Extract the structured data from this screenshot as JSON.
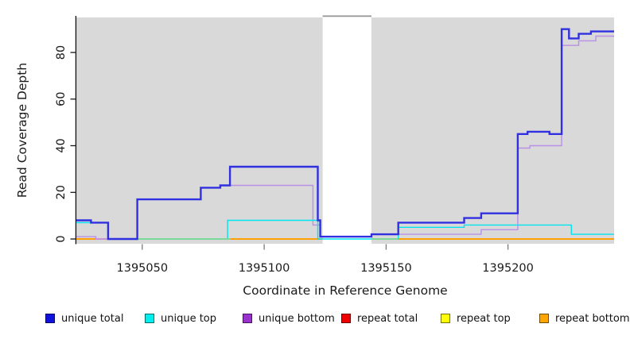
{
  "chart_data": {
    "type": "line",
    "subtype": "step",
    "title": "",
    "xlabel": "Coordinate in Reference Genome",
    "ylabel": "Read Coverage Depth",
    "x_ticks": [
      1395050,
      1395100,
      1395150,
      1395200
    ],
    "y_ticks": [
      0,
      20,
      40,
      60,
      80
    ],
    "x_domain": [
      1395023,
      1395243.5
    ],
    "y_domain": [
      0,
      95
    ],
    "grid": "off",
    "panel_bg": "#D9D9D9",
    "masked_region": {
      "x1": 1395124,
      "x2": 1395144,
      "fill": "#FFFFFF",
      "top_edge_color": "#999999"
    },
    "legend_position": "bottom",
    "series": [
      {
        "name": "unique-total",
        "label": "unique total",
        "color": "#3030E0",
        "swatch": "#1111DD",
        "width": 2.4,
        "z": 60,
        "points": [
          [
            1395023,
            8
          ],
          [
            1395029,
            7
          ],
          [
            1395036,
            0
          ],
          [
            1395048,
            17
          ],
          [
            1395074,
            22
          ],
          [
            1395082,
            23
          ],
          [
            1395086,
            31
          ],
          [
            1395122,
            8
          ],
          [
            1395123,
            1
          ],
          [
            1395144,
            2
          ],
          [
            1395155,
            7
          ],
          [
            1395182,
            9
          ],
          [
            1395189,
            11
          ],
          [
            1395204,
            45
          ],
          [
            1395208,
            46
          ],
          [
            1395217,
            45
          ],
          [
            1395222,
            90
          ],
          [
            1395225,
            86
          ],
          [
            1395229,
            88
          ],
          [
            1395234,
            89
          ],
          [
            1395243.5,
            89
          ]
        ]
      },
      {
        "name": "unique-top",
        "label": "unique top",
        "color": "#00E4EE",
        "swatch": "#00EEEE",
        "width": 1.4,
        "z": 30,
        "points": [
          [
            1395023,
            7
          ],
          [
            1395036,
            0
          ],
          [
            1395085,
            8
          ],
          [
            1395122,
            0
          ],
          [
            1395155,
            5
          ],
          [
            1395182,
            6
          ],
          [
            1395226,
            2
          ],
          [
            1395243.5,
            2
          ]
        ]
      },
      {
        "name": "unique-bottom",
        "label": "unique bottom",
        "color": "#B990E6",
        "swatch": "#9932CC",
        "width": 1.4,
        "z": 20,
        "points": [
          [
            1395023,
            1
          ],
          [
            1395031,
            0
          ],
          [
            1395048,
            17
          ],
          [
            1395074,
            22
          ],
          [
            1395082,
            23
          ],
          [
            1395120,
            6
          ],
          [
            1395123,
            1
          ],
          [
            1395144,
            2
          ],
          [
            1395189,
            4
          ],
          [
            1395204,
            39
          ],
          [
            1395209,
            40
          ],
          [
            1395222,
            83
          ],
          [
            1395229,
            85
          ],
          [
            1395236,
            87
          ],
          [
            1395243.5,
            87
          ]
        ]
      },
      {
        "name": "repeat-total",
        "label": "repeat total",
        "color": "#FF5566",
        "swatch": "#EE0000",
        "width": 1.5,
        "z": 6,
        "render": false,
        "points": [
          [
            1395023,
            0
          ],
          [
            1395243.5,
            0
          ]
        ]
      },
      {
        "name": "repeat-top",
        "label": "repeat top",
        "color": "#FFFF00",
        "swatch": "#FFFF00",
        "width": 1.4,
        "z": 4,
        "render": false,
        "points": [
          [
            1395023,
            0
          ],
          [
            1395243.5,
            0
          ]
        ]
      },
      {
        "name": "repeat-bottom",
        "label": "repeat bottom",
        "color": "#FF9F00",
        "swatch": "#FFA500",
        "width": 2,
        "z": 5,
        "render": false,
        "points": [
          [
            1395023,
            0
          ],
          [
            1395243.5,
            0
          ]
        ]
      }
    ],
    "zero_segments": [
      {
        "name": "repeat-bottom-zero-seg-1",
        "color": "#FF9F00",
        "x1": 1395023,
        "x2": 1395031,
        "z": 5,
        "width": 2
      },
      {
        "name": "repeat-bottom-zero-seg-2",
        "color": "#FF9F00",
        "x1": 1395086,
        "x2": 1395124,
        "z": 5,
        "width": 2
      },
      {
        "name": "repeat-bottom-zero-seg-3",
        "color": "#FF9F00",
        "x1": 1395155,
        "x2": 1395243.5,
        "z": 5,
        "width": 2
      },
      {
        "name": "repeat-total-zero-seg",
        "color": "#FF5566",
        "x1": 1395031,
        "x2": 1395036,
        "z": 6,
        "width": 1.5
      },
      {
        "name": "top-overlap-zero-seg-1",
        "color": "#7FD67F",
        "x1": 1395048,
        "x2": 1395086,
        "z": 40,
        "width": 1.5
      },
      {
        "name": "top-overlap-zero-seg-2",
        "color": "#7FD67F",
        "x1": 1395144,
        "x2": 1395155,
        "z": 40,
        "width": 1.5
      }
    ]
  }
}
